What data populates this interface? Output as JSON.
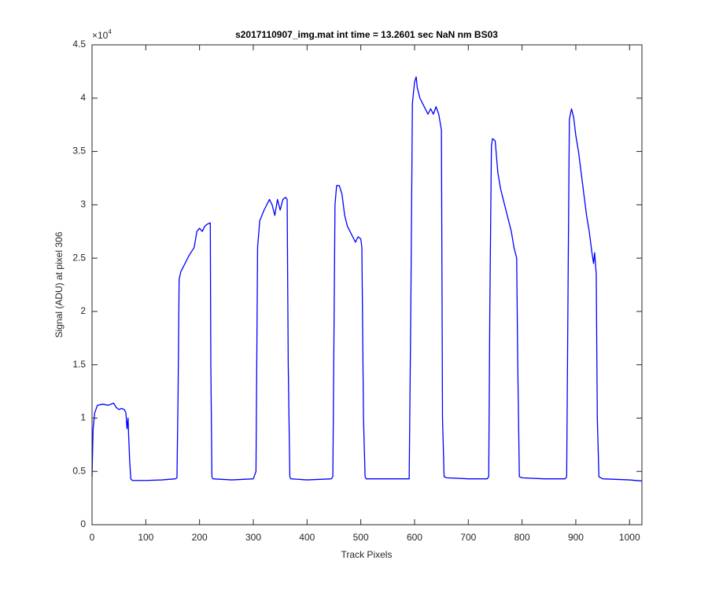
{
  "chart_data": {
    "type": "line",
    "title": "s2017110907_img.mat int time = 13.2601 sec  NaN nm BS03",
    "x_label": "Track Pixels",
    "y_label": "Signal (ADU) at pixel 306",
    "y_multiplier": {
      "base": "×10",
      "exponent": "4"
    },
    "color": "#0000ff",
    "xlim": [
      0,
      1023
    ],
    "ylim": [
      0,
      4.5
    ],
    "xticks": [
      0,
      100,
      200,
      300,
      400,
      500,
      600,
      700,
      800,
      900,
      1000
    ],
    "yticks": [
      0,
      0.5,
      1,
      1.5,
      2,
      2.5,
      3,
      3.5,
      4,
      4.5
    ],
    "box": true,
    "x": [
      0,
      2,
      5,
      10,
      20,
      30,
      40,
      45,
      50,
      55,
      60,
      63,
      65,
      67,
      68,
      70,
      72,
      75,
      100,
      130,
      155,
      158,
      160,
      162,
      165,
      170,
      180,
      190,
      195,
      200,
      205,
      210,
      215,
      220,
      221,
      223,
      225,
      260,
      300,
      305,
      308,
      312,
      320,
      330,
      335,
      340,
      345,
      350,
      355,
      360,
      363,
      365,
      368,
      370,
      400,
      445,
      448,
      452,
      455,
      460,
      465,
      470,
      475,
      480,
      485,
      490,
      495,
      500,
      502,
      505,
      508,
      510,
      550,
      590,
      593,
      596,
      600,
      603,
      605,
      610,
      615,
      620,
      625,
      630,
      635,
      640,
      645,
      650,
      652,
      655,
      660,
      700,
      735,
      738,
      740,
      743,
      745,
      750,
      755,
      760,
      765,
      770,
      775,
      780,
      785,
      790,
      792,
      795,
      800,
      840,
      880,
      883,
      886,
      888,
      892,
      896,
      900,
      905,
      910,
      915,
      920,
      925,
      930,
      933,
      935,
      938,
      940,
      943,
      950,
      1000,
      1023
    ],
    "values": [
      0.45,
      0.9,
      1.05,
      1.12,
      1.13,
      1.12,
      1.14,
      1.1,
      1.08,
      1.09,
      1.08,
      1.05,
      0.9,
      1.0,
      0.85,
      0.6,
      0.43,
      0.415,
      0.415,
      0.42,
      0.43,
      0.44,
      1.2,
      2.3,
      2.37,
      2.42,
      2.52,
      2.6,
      2.75,
      2.78,
      2.75,
      2.8,
      2.82,
      2.83,
      1.5,
      0.45,
      0.43,
      0.42,
      0.43,
      0.5,
      2.6,
      2.85,
      2.95,
      3.05,
      3.0,
      2.9,
      3.05,
      2.95,
      3.05,
      3.07,
      3.05,
      1.5,
      0.45,
      0.43,
      0.42,
      0.43,
      0.45,
      3.0,
      3.18,
      3.18,
      3.1,
      2.9,
      2.8,
      2.75,
      2.7,
      2.65,
      2.7,
      2.68,
      2.6,
      1.0,
      0.45,
      0.43,
      0.43,
      0.43,
      2.0,
      3.95,
      4.15,
      4.2,
      4.1,
      4.0,
      3.95,
      3.9,
      3.85,
      3.9,
      3.85,
      3.92,
      3.85,
      3.7,
      1.0,
      0.45,
      0.44,
      0.43,
      0.43,
      0.45,
      2.0,
      3.55,
      3.62,
      3.6,
      3.3,
      3.15,
      3.05,
      2.95,
      2.85,
      2.75,
      2.6,
      2.5,
      1.5,
      0.45,
      0.44,
      0.43,
      0.43,
      0.45,
      2.5,
      3.8,
      3.9,
      3.82,
      3.65,
      3.5,
      3.3,
      3.1,
      2.9,
      2.75,
      2.55,
      2.45,
      2.55,
      2.35,
      1.0,
      0.45,
      0.43,
      0.42,
      0.41
    ]
  }
}
